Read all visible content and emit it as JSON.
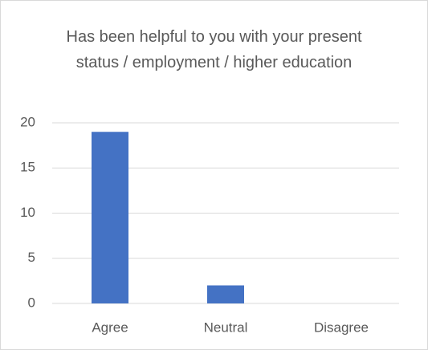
{
  "chart_data": {
    "type": "bar",
    "title": "Has been helpful to you with your present status / employment / higher education",
    "categories": [
      "Agree",
      "Neutral",
      "Disagree"
    ],
    "values": [
      19,
      2,
      0
    ],
    "color": "#4472c4",
    "ylim": [
      0,
      20
    ],
    "yticks": [
      0,
      5,
      10,
      15,
      20
    ],
    "grid": true
  }
}
